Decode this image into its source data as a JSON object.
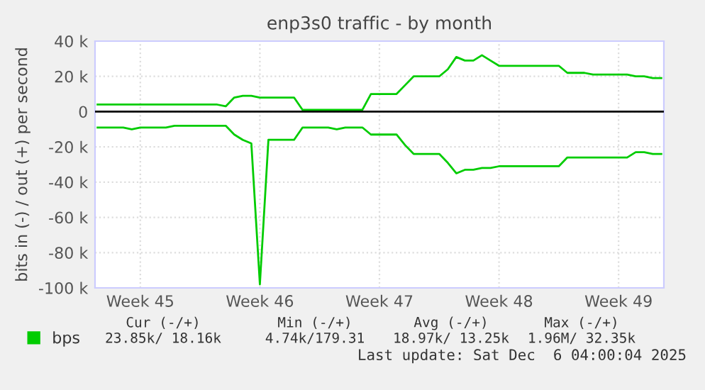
{
  "chart_data": {
    "type": "line",
    "title": "enp3s0 traffic - by month",
    "ylabel": "bits in (-) / out (+) per second",
    "categories": [
      null,
      null,
      null,
      null,
      null,
      "Week 45",
      null,
      null,
      null,
      null,
      null,
      null,
      null,
      null,
      null,
      null,
      null,
      null,
      null,
      "Week 46",
      null,
      null,
      null,
      null,
      null,
      null,
      null,
      null,
      null,
      null,
      null,
      null,
      null,
      "Week 47",
      null,
      null,
      null,
      null,
      null,
      null,
      null,
      null,
      null,
      null,
      null,
      null,
      null,
      "Week 48",
      null,
      null,
      null,
      null,
      null,
      null,
      null,
      null,
      null,
      null,
      null,
      null,
      null,
      "Week 49",
      null,
      null,
      null,
      null,
      null
    ],
    "series": [
      {
        "name": "bps",
        "color": "#00cc00",
        "values": [
          4,
          4,
          4,
          4,
          4,
          4,
          4,
          4,
          4,
          4,
          4,
          4,
          4,
          4,
          4,
          3,
          8,
          9,
          9,
          8,
          8,
          8,
          8,
          8,
          1,
          1,
          1,
          1,
          1,
          1,
          1,
          1,
          10,
          10,
          10,
          10,
          15,
          20,
          20,
          20,
          20,
          24,
          31,
          29,
          29,
          32,
          29,
          26,
          26,
          26,
          26,
          26,
          26,
          26,
          26,
          22,
          22,
          22,
          21,
          21,
          21,
          21,
          21,
          20,
          20,
          19,
          19
        ]
      },
      {
        "color": "#00cc00",
        "values": [
          -9,
          -9,
          -9,
          -9,
          -10,
          -9,
          -9,
          -9,
          -9,
          -8,
          -8,
          -8,
          -8,
          -8,
          -8,
          -8,
          -13,
          -16,
          -18,
          -98,
          -16,
          -16,
          -16,
          -16,
          -9,
          -9,
          -9,
          -9,
          -10,
          -9,
          -9,
          -9,
          -13,
          -13,
          -13,
          -13,
          -19,
          -24,
          -24,
          -24,
          -24,
          -29,
          -35,
          -33,
          -33,
          -32,
          -32,
          -31,
          -31,
          -31,
          -31,
          -31,
          -31,
          -31,
          -31,
          -26,
          -26,
          -26,
          -26,
          -26,
          -26,
          -26,
          -26,
          -23,
          -23,
          -24,
          -24
        ]
      }
    ],
    "ylim": [
      -100,
      40
    ],
    "yticks": [
      {
        "value": -100,
        "label": "-100 k"
      },
      {
        "value": -80,
        "label": "-80 k"
      },
      {
        "value": -60,
        "label": "-60 k"
      },
      {
        "value": -40,
        "label": "-40 k"
      },
      {
        "value": -20,
        "label": "-20 k"
      },
      0,
      {
        "value": 20,
        "label": "20 k"
      },
      {
        "value": 40,
        "label": "40 k"
      }
    ],
    "ref_lines": [
      {
        "axis": "y",
        "value": 0,
        "color": "#000000"
      }
    ],
    "grid": true,
    "legend": "bottom",
    "marker": "none",
    "line_style": "solid",
    "annotations": [
      "Cur (-/+)",
      "Min (-/+)",
      "Avg (-/+)",
      "Max (-/+)",
      "23.85k/ 18.16k",
      "4.74k/179.31",
      "18.97k/ 13.25k",
      "1.96M/ 32.35k",
      "Last update: Sat Dec  6 04:00:04 2025"
    ]
  }
}
